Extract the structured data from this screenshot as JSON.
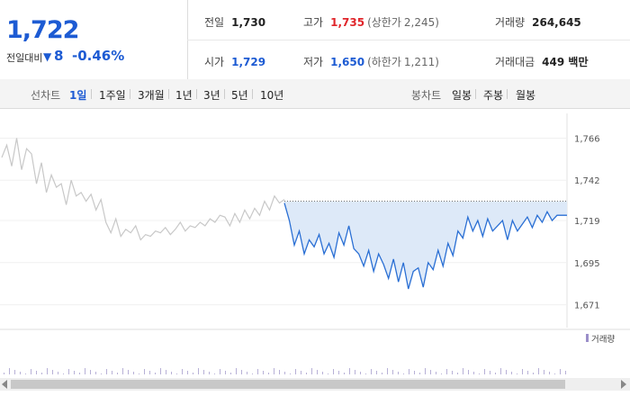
{
  "summary": {
    "price": "1,722",
    "change_label": "전일대비",
    "change_arrow": "▼",
    "change_value": "8",
    "change_pct": "-0.46%"
  },
  "stats": {
    "prev": {
      "label": "전일",
      "value": "1,730"
    },
    "high": {
      "label": "고가",
      "value": "1,735",
      "sub_label": "(상한가",
      "sub_value": "2,245)"
    },
    "volume": {
      "label": "거래량",
      "value": "264,645"
    },
    "open": {
      "label": "시가",
      "value": "1,729"
    },
    "low": {
      "label": "저가",
      "value": "1,650",
      "sub_label": "(하한가",
      "sub_value": "1,211)"
    },
    "amount": {
      "label": "거래대금",
      "value": "449 백만"
    }
  },
  "tabs": {
    "line_label": "선차트",
    "line_items": [
      "1일",
      "1주일",
      "3개월",
      "1년",
      "3년",
      "5년",
      "10년"
    ],
    "selected": "1일",
    "candle_label": "봉차트",
    "candle_items": [
      "일봉",
      "주봉",
      "월봉"
    ]
  },
  "colors": {
    "accent_blue": "#1d5bd3",
    "up_red": "#e0262b",
    "prev_day_line": "#c8c8c8",
    "today_line": "#2a6fd4",
    "fill": "#dde9f8"
  },
  "chart_data": {
    "type": "line",
    "ylim": [
      1660,
      1776
    ],
    "yticks": [
      "1,766",
      "1,742",
      "1,719",
      "1,695",
      "1,671"
    ],
    "ytick_values": [
      1766,
      1742,
      1719,
      1695,
      1671
    ],
    "reference_price": 1730,
    "volume_legend": "거래량",
    "series": [
      {
        "values": [
          1755,
          1762,
          1750,
          1766,
          1748,
          1760,
          1757,
          1740,
          1752,
          1735,
          1745,
          1738,
          1740,
          1728,
          1742,
          1733,
          1735,
          1730,
          1734,
          1725,
          1731,
          1718,
          1712,
          1720,
          1710,
          1714,
          1712,
          1716,
          1708,
          1711,
          1710,
          1713,
          1712,
          1715,
          1711,
          1714,
          1718,
          1713,
          1716,
          1715,
          1718,
          1716,
          1720,
          1718,
          1722,
          1721,
          1716,
          1723,
          1718,
          1725,
          1720,
          1726,
          1722,
          1730,
          1725,
          1733,
          1729,
          1731
        ]
      },
      {
        "values": [
          1729,
          1719,
          1705,
          1713,
          1700,
          1708,
          1704,
          1711,
          1700,
          1706,
          1698,
          1712,
          1705,
          1716,
          1703,
          1700,
          1693,
          1702,
          1690,
          1700,
          1694,
          1686,
          1697,
          1684,
          1695,
          1680,
          1690,
          1692,
          1681,
          1695,
          1691,
          1702,
          1693,
          1706,
          1699,
          1713,
          1709,
          1721,
          1713,
          1719,
          1710,
          1720,
          1713,
          1716,
          1719,
          1708,
          1719,
          1713,
          1717,
          1721,
          1715,
          1722,
          1718,
          1724,
          1719,
          1722,
          1722,
          1722
        ]
      }
    ]
  }
}
